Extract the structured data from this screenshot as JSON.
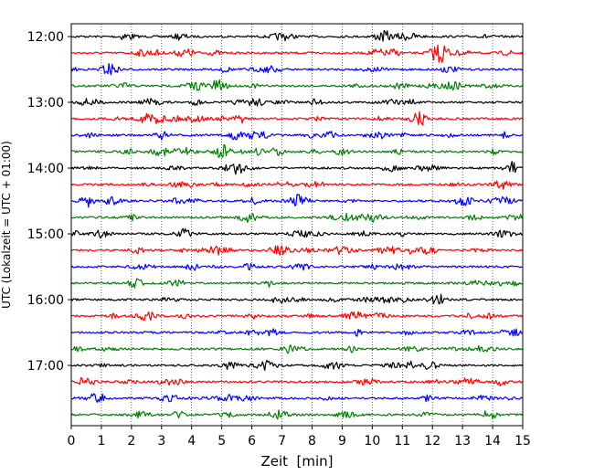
{
  "chart_data": {
    "type": "line",
    "title": "",
    "xlabel": "Zeit  [min]",
    "ylabel": "UTC (Lokalzeit = UTC + 01:00)",
    "xlim": [
      0,
      15
    ],
    "x_ticks": [
      "0",
      "1",
      "2",
      "3",
      "4",
      "5",
      "6",
      "7",
      "8",
      "9",
      "10",
      "11",
      "12",
      "13",
      "14",
      "15"
    ],
    "y_ticks": [
      "12:00",
      "13:00",
      "14:00",
      "15:00",
      "16:00",
      "17:00"
    ],
    "grid": "vertical dotted lines at each minute",
    "trace_colors": [
      "#000000",
      "#ff0000",
      "#0000ff",
      "#008000"
    ],
    "traces_start": [
      "12:00",
      "12:15",
      "12:30",
      "12:45",
      "13:00",
      "13:15",
      "13:30",
      "13:45",
      "14:00",
      "14:15",
      "14:30",
      "14:45",
      "15:00",
      "15:15",
      "15:30",
      "15:45",
      "16:00",
      "16:15",
      "16:30",
      "16:45",
      "17:00",
      "17:15",
      "17:30",
      "17:45"
    ],
    "trace_duration_min": 15
  }
}
